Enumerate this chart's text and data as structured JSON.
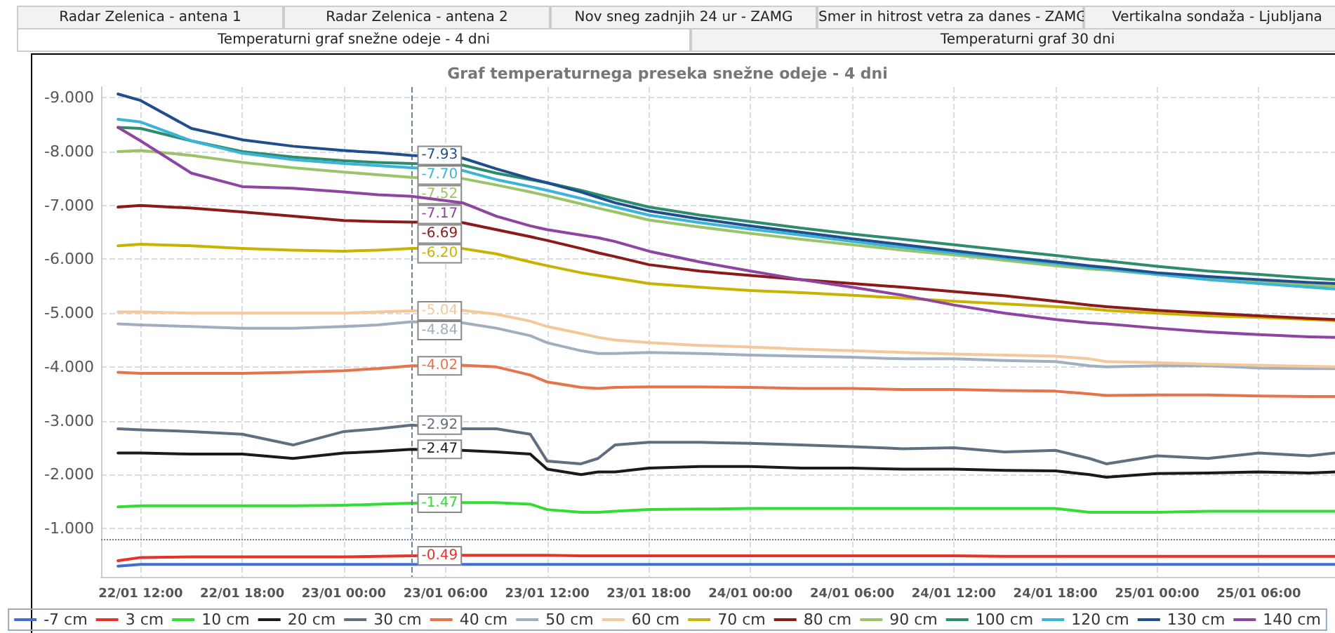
{
  "chart_data": {
    "type": "line",
    "title": "Graf temperaturnega preseka snežne odeje - 4 dni",
    "annotations": [
      "Radar Zelenica - antena 1",
      "Radar Zelenica - antena 2",
      "Nov sneg zadnjih 24 ur - ZAMG",
      "Smer in hitrost vetra za danes - ZAMG",
      "Vertikalna sondaža - Ljubljana",
      "Temperaturni graf snežne odeje - 4 dni",
      "Temperaturni graf 30 dni"
    ],
    "x": [
      "--01-22T10:40",
      "--01-22T12:00",
      "--01-22T15:00",
      "--01-22T18:00",
      "--01-22T21:00",
      "--01-23T00:00",
      "--01-23T02:00",
      "--01-23T04:00",
      "--01-23T07:00",
      "--01-23T09:00",
      "--01-23T11:00",
      "--01-23T12:00",
      "--01-23T14:00",
      "--01-23T15:00",
      "--01-23T16:00",
      "--01-23T18:00",
      "--01-23T21:00",
      "--01-24T00:00",
      "--01-24T03:00",
      "--01-24T06:00",
      "--01-24T09:00",
      "--01-24T12:00",
      "--01-24T15:00",
      "--01-24T18:00",
      "--01-24T20:00",
      "--01-24T21:00",
      "--01-25T00:00",
      "--01-25T03:00",
      "--01-25T06:00",
      "--01-25T09:00",
      "--01-25T10:30"
    ],
    "xlim": [
      "--01-22T09:40",
      "--01-25T10:30"
    ],
    "xticks": [
      {
        "value": "--01-22T12:00",
        "label": "22/01 12:00"
      },
      {
        "value": "--01-22T18:00",
        "label": "22/01 18:00"
      },
      {
        "value": "--01-23T00:00",
        "label": "23/01 00:00"
      },
      {
        "value": "--01-23T06:00",
        "label": "23/01 06:00"
      },
      {
        "value": "--01-23T12:00",
        "label": "23/01 12:00"
      },
      {
        "value": "--01-23T18:00",
        "label": "23/01 18:00"
      },
      {
        "value": "--01-24T00:00",
        "label": "24/01 00:00"
      },
      {
        "value": "--01-24T06:00",
        "label": "24/01 06:00"
      },
      {
        "value": "--01-24T12:00",
        "label": "24/01 12:00"
      },
      {
        "value": "--01-24T18:00",
        "label": "24/01 18:00"
      },
      {
        "value": "--01-25T00:00",
        "label": "25/01 00:00"
      },
      {
        "value": "--01-25T06:00",
        "label": "25/01 06:00"
      }
    ],
    "ylim": [
      -0.1,
      -9.2
    ],
    "yticks": [
      {
        "value": -9,
        "label": "-9.000"
      },
      {
        "value": -8,
        "label": "-8.000"
      },
      {
        "value": -7,
        "label": "-7.000"
      },
      {
        "value": -6,
        "label": "-6.000"
      },
      {
        "value": -5,
        "label": "-5.000"
      },
      {
        "value": -4,
        "label": "-4.000"
      },
      {
        "value": -3,
        "label": "-3.000"
      },
      {
        "value": -2,
        "label": "-2.000"
      },
      {
        "value": -1,
        "label": "-1.000"
      }
    ],
    "grid": true,
    "legend": "bottom",
    "marker": "none",
    "line_style": "solid",
    "ref_lines": [
      {
        "axis": "x",
        "value": "--01-23T04:00",
        "color": "#7080a0",
        "line_style": "dashed"
      },
      {
        "axis": "y",
        "value": -0.8,
        "color": "#7080a0",
        "line_style": "dotted"
      }
    ],
    "series": [
      {
        "name": "-7 cm",
        "color": "#3f6fd0",
        "values": [
          -0.3,
          -0.33,
          -0.33,
          -0.33,
          -0.33,
          -0.33,
          -0.33,
          -0.33,
          -0.33,
          -0.33,
          -0.33,
          -0.33,
          -0.33,
          -0.33,
          -0.33,
          -0.33,
          -0.33,
          -0.33,
          -0.33,
          -0.33,
          -0.33,
          -0.33,
          -0.33,
          -0.33,
          -0.33,
          -0.33,
          -0.33,
          -0.33,
          -0.33,
          -0.33,
          -0.33
        ]
      },
      {
        "name": "3 cm",
        "color": "#e8312a",
        "values": [
          -0.4,
          -0.46,
          -0.47,
          -0.47,
          -0.47,
          -0.47,
          -0.48,
          -0.49,
          -0.5,
          -0.5,
          -0.5,
          -0.5,
          -0.49,
          -0.49,
          -0.49,
          -0.49,
          -0.49,
          -0.49,
          -0.49,
          -0.49,
          -0.49,
          -0.49,
          -0.48,
          -0.48,
          -0.48,
          -0.48,
          -0.48,
          -0.48,
          -0.48,
          -0.48,
          -0.48
        ],
        "value_labels": [
          null,
          null,
          null,
          null,
          null,
          null,
          null,
          "-0.49",
          null,
          null,
          null,
          null,
          null,
          null,
          null,
          null,
          null,
          null,
          null,
          null,
          null,
          null,
          null,
          null,
          null,
          null,
          null,
          null,
          null,
          null,
          null
        ]
      },
      {
        "name": "10 cm",
        "color": "#33dd33",
        "values": [
          -1.4,
          -1.42,
          -1.42,
          -1.42,
          -1.42,
          -1.43,
          -1.45,
          -1.47,
          -1.48,
          -1.48,
          -1.45,
          -1.35,
          -1.3,
          -1.3,
          -1.32,
          -1.35,
          -1.36,
          -1.37,
          -1.37,
          -1.37,
          -1.37,
          -1.37,
          -1.37,
          -1.37,
          -1.3,
          -1.3,
          -1.3,
          -1.32,
          -1.32,
          -1.32,
          -1.32
        ],
        "value_labels": [
          null,
          null,
          null,
          null,
          null,
          null,
          null,
          "-1.47",
          null,
          null,
          null,
          null,
          null,
          null,
          null,
          null,
          null,
          null,
          null,
          null,
          null,
          null,
          null,
          null,
          null,
          null,
          null,
          null,
          null,
          null,
          null
        ]
      },
      {
        "name": "20 cm",
        "color": "#1a1a1a",
        "values": [
          -2.4,
          -2.4,
          -2.38,
          -2.38,
          -2.3,
          -2.4,
          -2.43,
          -2.47,
          -2.45,
          -2.42,
          -2.38,
          -2.1,
          -2.0,
          -2.05,
          -2.05,
          -2.12,
          -2.15,
          -2.15,
          -2.12,
          -2.12,
          -2.1,
          -2.1,
          -2.08,
          -2.07,
          -2.0,
          -1.95,
          -2.02,
          -2.03,
          -2.05,
          -2.03,
          -2.05
        ],
        "value_labels": [
          null,
          null,
          null,
          null,
          null,
          null,
          null,
          "-2.47",
          null,
          null,
          null,
          null,
          null,
          null,
          null,
          null,
          null,
          null,
          null,
          null,
          null,
          null,
          null,
          null,
          null,
          null,
          null,
          null,
          null,
          null,
          null
        ]
      },
      {
        "name": "30 cm",
        "color": "#5f6f7f",
        "values": [
          -2.85,
          -2.83,
          -2.8,
          -2.75,
          -2.55,
          -2.8,
          -2.85,
          -2.92,
          -2.85,
          -2.85,
          -2.75,
          -2.25,
          -2.2,
          -2.3,
          -2.55,
          -2.6,
          -2.6,
          -2.58,
          -2.55,
          -2.52,
          -2.48,
          -2.5,
          -2.42,
          -2.45,
          -2.3,
          -2.2,
          -2.35,
          -2.3,
          -2.4,
          -2.35,
          -2.4
        ],
        "value_labels": [
          null,
          null,
          null,
          null,
          null,
          null,
          null,
          "-2.92",
          null,
          null,
          null,
          null,
          null,
          null,
          null,
          null,
          null,
          null,
          null,
          null,
          null,
          null,
          null,
          null,
          null,
          null,
          null,
          null,
          null,
          null,
          null
        ]
      },
      {
        "name": "40 cm",
        "color": "#e6734a",
        "values": [
          -3.9,
          -3.88,
          -3.88,
          -3.88,
          -3.9,
          -3.93,
          -3.97,
          -4.02,
          -4.03,
          -4.0,
          -3.85,
          -3.72,
          -3.62,
          -3.6,
          -3.62,
          -3.63,
          -3.63,
          -3.62,
          -3.6,
          -3.6,
          -3.58,
          -3.58,
          -3.56,
          -3.55,
          -3.5,
          -3.47,
          -3.48,
          -3.48,
          -3.46,
          -3.45,
          -3.45
        ],
        "value_labels": [
          null,
          null,
          null,
          null,
          null,
          null,
          null,
          "-4.02",
          null,
          null,
          null,
          null,
          null,
          null,
          null,
          null,
          null,
          null,
          null,
          null,
          null,
          null,
          null,
          null,
          null,
          null,
          null,
          null,
          null,
          null,
          null
        ]
      },
      {
        "name": "50 cm",
        "color": "#a0aec0",
        "values": [
          -4.8,
          -4.78,
          -4.75,
          -4.72,
          -4.72,
          -4.75,
          -4.78,
          -4.84,
          -4.82,
          -4.72,
          -4.58,
          -4.45,
          -4.3,
          -4.25,
          -4.25,
          -4.27,
          -4.25,
          -4.22,
          -4.2,
          -4.18,
          -4.15,
          -4.15,
          -4.12,
          -4.1,
          -4.02,
          -4.0,
          -4.02,
          -4.02,
          -3.98,
          -3.97,
          -3.97
        ],
        "value_labels": [
          null,
          null,
          null,
          null,
          null,
          null,
          null,
          "-4.84",
          null,
          null,
          null,
          null,
          null,
          null,
          null,
          null,
          null,
          null,
          null,
          null,
          null,
          null,
          null,
          null,
          null,
          null,
          null,
          null,
          null,
          null,
          null
        ]
      },
      {
        "name": "60 cm",
        "color": "#f5c89a",
        "values": [
          -5.02,
          -5.02,
          -5.0,
          -5.0,
          -5.0,
          -5.0,
          -5.02,
          -5.04,
          -5.05,
          -4.98,
          -4.85,
          -4.75,
          -4.62,
          -4.55,
          -4.5,
          -4.45,
          -4.4,
          -4.37,
          -4.33,
          -4.3,
          -4.27,
          -4.24,
          -4.22,
          -4.2,
          -4.15,
          -4.1,
          -4.08,
          -4.05,
          -4.03,
          -4.01,
          -4.0
        ],
        "value_labels": [
          null,
          null,
          null,
          null,
          null,
          null,
          null,
          "-5.04",
          null,
          null,
          null,
          null,
          null,
          null,
          null,
          null,
          null,
          null,
          null,
          null,
          null,
          null,
          null,
          null,
          null,
          null,
          null,
          null,
          null,
          null,
          null
        ]
      },
      {
        "name": "70 cm",
        "color": "#c8b400",
        "values": [
          -6.25,
          -6.28,
          -6.25,
          -6.2,
          -6.17,
          -6.15,
          -6.17,
          -6.2,
          -6.2,
          -6.1,
          -5.95,
          -5.88,
          -5.75,
          -5.7,
          -5.65,
          -5.55,
          -5.48,
          -5.42,
          -5.38,
          -5.33,
          -5.28,
          -5.22,
          -5.17,
          -5.12,
          -5.08,
          -5.05,
          -5.0,
          -4.95,
          -4.92,
          -4.88,
          -4.86
        ],
        "value_labels": [
          null,
          null,
          null,
          null,
          null,
          null,
          null,
          "-6.20",
          null,
          null,
          null,
          null,
          null,
          null,
          null,
          null,
          null,
          null,
          null,
          null,
          null,
          null,
          null,
          null,
          null,
          null,
          null,
          null,
          null,
          null,
          null
        ]
      },
      {
        "name": "80 cm",
        "color": "#8b1a1a",
        "values": [
          -6.97,
          -7.0,
          -6.95,
          -6.88,
          -6.8,
          -6.72,
          -6.7,
          -6.69,
          -6.68,
          -6.55,
          -6.42,
          -6.35,
          -6.2,
          -6.12,
          -6.05,
          -5.9,
          -5.78,
          -5.7,
          -5.62,
          -5.55,
          -5.48,
          -5.4,
          -5.32,
          -5.22,
          -5.15,
          -5.12,
          -5.05,
          -5.0,
          -4.95,
          -4.9,
          -4.88
        ],
        "value_labels": [
          null,
          null,
          null,
          null,
          null,
          null,
          null,
          "-6.69",
          null,
          null,
          null,
          null,
          null,
          null,
          null,
          null,
          null,
          null,
          null,
          null,
          null,
          null,
          null,
          null,
          null,
          null,
          null,
          null,
          null,
          null,
          null
        ]
      },
      {
        "name": "90 cm",
        "color": "#9bc46a",
        "values": [
          -8.0,
          -8.02,
          -7.93,
          -7.8,
          -7.7,
          -7.62,
          -7.57,
          -7.52,
          -7.5,
          -7.38,
          -7.25,
          -7.18,
          -7.03,
          -6.95,
          -6.88,
          -6.73,
          -6.6,
          -6.48,
          -6.37,
          -6.27,
          -6.17,
          -6.08,
          -5.98,
          -5.88,
          -5.82,
          -5.8,
          -5.72,
          -5.64,
          -5.58,
          -5.52,
          -5.5
        ],
        "value_labels": [
          null,
          null,
          null,
          null,
          null,
          null,
          null,
          "-7.52",
          null,
          null,
          null,
          null,
          null,
          null,
          null,
          null,
          null,
          null,
          null,
          null,
          null,
          null,
          null,
          null,
          null,
          null,
          null,
          null,
          null,
          null,
          null
        ]
      },
      {
        "name": "100 cm",
        "color": "#2e8b6e",
        "values": [
          -8.45,
          -8.43,
          -8.2,
          -8.0,
          -7.9,
          -7.83,
          -7.8,
          -7.78,
          -7.75,
          -7.6,
          -7.48,
          -7.42,
          -7.28,
          -7.2,
          -7.12,
          -6.97,
          -6.82,
          -6.7,
          -6.58,
          -6.47,
          -6.37,
          -6.27,
          -6.17,
          -6.07,
          -6.0,
          -5.97,
          -5.87,
          -5.78,
          -5.72,
          -5.65,
          -5.62
        ]
      },
      {
        "name": "120 cm",
        "color": "#3cb4d8",
        "values": [
          -8.6,
          -8.55,
          -8.2,
          -7.97,
          -7.85,
          -7.78,
          -7.74,
          -7.7,
          -7.65,
          -7.48,
          -7.35,
          -7.28,
          -7.13,
          -7.05,
          -6.97,
          -6.82,
          -6.68,
          -6.56,
          -6.45,
          -6.33,
          -6.22,
          -6.12,
          -6.02,
          -5.92,
          -5.85,
          -5.82,
          -5.72,
          -5.62,
          -5.55,
          -5.48,
          -5.45
        ],
        "value_labels": [
          null,
          null,
          null,
          null,
          null,
          null,
          null,
          "-7.70",
          null,
          null,
          null,
          null,
          null,
          null,
          null,
          null,
          null,
          null,
          null,
          null,
          null,
          null,
          null,
          null,
          null,
          null,
          null,
          null,
          null,
          null,
          null
        ]
      },
      {
        "name": "130 cm",
        "color": "#1f4e8c",
        "values": [
          -9.07,
          -8.95,
          -8.43,
          -8.22,
          -8.1,
          -8.02,
          -7.98,
          -7.93,
          -7.88,
          -7.68,
          -7.5,
          -7.42,
          -7.25,
          -7.15,
          -7.05,
          -6.9,
          -6.75,
          -6.62,
          -6.5,
          -6.38,
          -6.27,
          -6.16,
          -6.05,
          -5.95,
          -5.88,
          -5.85,
          -5.75,
          -5.68,
          -5.62,
          -5.57,
          -5.55
        ],
        "value_labels": [
          null,
          null,
          null,
          null,
          null,
          null,
          null,
          "-7.93",
          null,
          null,
          null,
          null,
          null,
          null,
          null,
          null,
          null,
          null,
          null,
          null,
          null,
          null,
          null,
          null,
          null,
          null,
          null,
          null,
          null,
          null,
          null
        ]
      },
      {
        "name": "140 cm",
        "color": "#8e44a0",
        "values": [
          -8.45,
          -8.2,
          -7.6,
          -7.35,
          -7.32,
          -7.25,
          -7.2,
          -7.17,
          -7.05,
          -6.8,
          -6.62,
          -6.55,
          -6.45,
          -6.4,
          -6.33,
          -6.15,
          -5.95,
          -5.78,
          -5.62,
          -5.48,
          -5.33,
          -5.15,
          -5.0,
          -4.88,
          -4.82,
          -4.8,
          -4.72,
          -4.65,
          -4.6,
          -4.56,
          -4.55
        ],
        "value_labels": [
          null,
          null,
          null,
          null,
          null,
          null,
          null,
          "-7.17",
          null,
          null,
          null,
          null,
          null,
          null,
          null,
          null,
          null,
          null,
          null,
          null,
          null,
          null,
          null,
          null,
          null,
          null,
          null,
          null,
          null,
          null,
          null
        ]
      }
    ]
  }
}
